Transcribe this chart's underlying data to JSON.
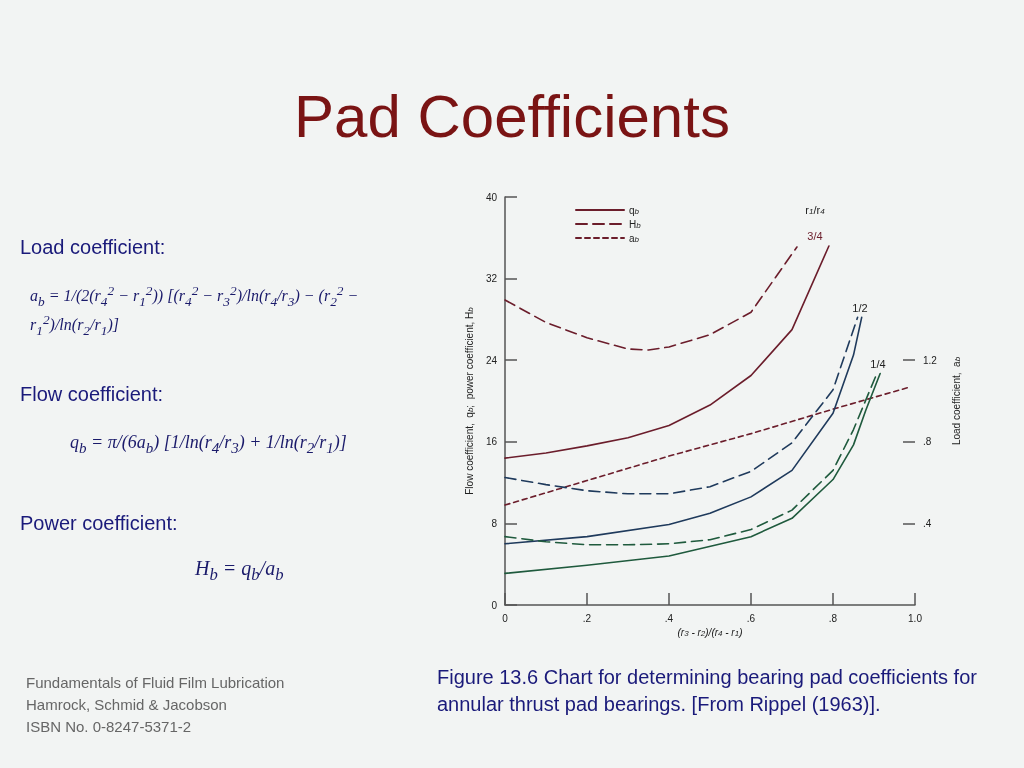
{
  "chart_data": {
    "type": "line",
    "title": "Pad Coefficients",
    "xlabel": "(r$_{3}$ - r$_{2}$)/(r$_{4}$ - r$_{1}$)",
    "ylabel": "Flow coefficient,  q$_{b}$;  power coefficient, H$_{b}$",
    "y2label": "Load coefficient,  a$_{b}$",
    "xlim": [
      0,
      1
    ],
    "xticks": [
      0,
      {
        "value": 0.2,
        "label": ".2"
      },
      {
        "value": 0.4,
        "label": ".4"
      },
      {
        "value": 0.6,
        "label": ".6"
      },
      {
        "value": 0.8,
        "label": ".8"
      },
      {
        "value": 1,
        "label": "1.0"
      }
    ],
    "ylim": [
      0,
      40
    ],
    "yticks": [
      0,
      8,
      16,
      24,
      32,
      40
    ],
    "y2lim": [
      0,
      2
    ],
    "y2ticks": [
      {
        "value": 0.4,
        "label": ".4"
      },
      {
        "value": 0.8,
        "label": ".8"
      },
      {
        "value": 1.2,
        "label": "1.2"
      }
    ],
    "legend": "top",
    "grid": false,
    "marker": "none",
    "series": [
      {
        "name": "q$_{b}$",
        "color": "#6b1d2b",
        "line_style": "solid",
        "x": [
          0,
          0.1,
          0.2,
          0.3,
          0.4,
          0.5,
          0.6,
          0.7,
          0.79
        ],
        "values": [
          14.4,
          14.9,
          15.6,
          16.4,
          17.6,
          19.6,
          22.5,
          27.0,
          35.2
        ]
      },
      {
        "name": "H$_{b}$",
        "color": "#6b1d2b",
        "line_style": "dashed",
        "x": [
          0,
          0.1,
          0.2,
          0.3,
          0.35,
          0.4,
          0.5,
          0.6,
          0.712
        ],
        "values": [
          29.9,
          27.7,
          26.2,
          25.1,
          25.0,
          25.3,
          26.5,
          28.7,
          35.1
        ]
      },
      {
        "name": "a$_{b}$",
        "color": "#6b1d2b",
        "line_style": "dashed",
        "axis": "y2",
        "x": [
          0,
          0.2,
          0.4,
          0.6,
          0.8,
          0.99
        ],
        "values": [
          0.49,
          0.61,
          0.73,
          0.84,
          0.96,
          1.07
        ]
      },
      {
        "color": "#1f3a5c",
        "line_style": "solid",
        "x": [
          0,
          0.2,
          0.4,
          0.5,
          0.6,
          0.7,
          0.8,
          0.85,
          0.87
        ],
        "values": [
          6.0,
          6.7,
          7.9,
          9.0,
          10.6,
          13.2,
          18.8,
          24.5,
          28.2
        ]
      },
      {
        "color": "#1f3a5c",
        "line_style": "dashed",
        "x": [
          0,
          0.1,
          0.2,
          0.3,
          0.4,
          0.5,
          0.6,
          0.7,
          0.8,
          0.86
        ],
        "values": [
          12.5,
          11.8,
          11.2,
          10.9,
          10.9,
          11.6,
          13.1,
          15.9,
          21.1,
          28.2
        ]
      },
      {
        "color": "#1f5a3d",
        "line_style": "solid",
        "x": [
          0,
          0.2,
          0.4,
          0.6,
          0.7,
          0.8,
          0.85,
          0.88,
          0.915
        ],
        "values": [
          3.1,
          3.9,
          4.8,
          6.7,
          8.5,
          12.3,
          15.7,
          19.1,
          22.7
        ]
      },
      {
        "color": "#1f5a3d",
        "line_style": "dashed",
        "x": [
          0,
          0.1,
          0.2,
          0.3,
          0.4,
          0.5,
          0.6,
          0.7,
          0.8,
          0.85,
          0.907
        ],
        "values": [
          6.7,
          6.2,
          5.9,
          5.9,
          6.0,
          6.4,
          7.4,
          9.3,
          13.2,
          17.2,
          22.7
        ]
      }
    ],
    "annotations": [
      "Load coefficient:",
      "a$_{b}$ = 1/(2(r$_{4}$$^{2}$ − r$_{1}$$^{2}$)) [(r$_{4}$$^{2}$ − r$_{3}$$^{2}$)/ln(r$_{4}$/r$_{3}$) − (r$_{2}$$^{2}$ − r$_{1}$$^{2}$)/ln(r$_{2}$/r$_{1}$)]",
      "Flow coefficient:",
      "q$_{b}$ = π/(6a$_{b}$) [1/ln(r$_{4}$/r$_{3}$) + 1/ln(r$_{2}$/r$_{1}$)]",
      "Power coefficient:",
      "H$_{b}$ = q$_{b}$/a$_{b}$",
      "Fundamentals of Fluid Film Lubrication",
      "Hamrock, Schmid & Jacobson",
      "ISBN No. 0-8247-5371-2",
      "Figure 13.6   Chart for determining bearing pad coefficients for annular thrust pad bearings. [From Rippel (1963)].",
      "r$_{1}$/r$_{4}$",
      "3/4",
      "1/2",
      "1/4"
    ]
  }
}
